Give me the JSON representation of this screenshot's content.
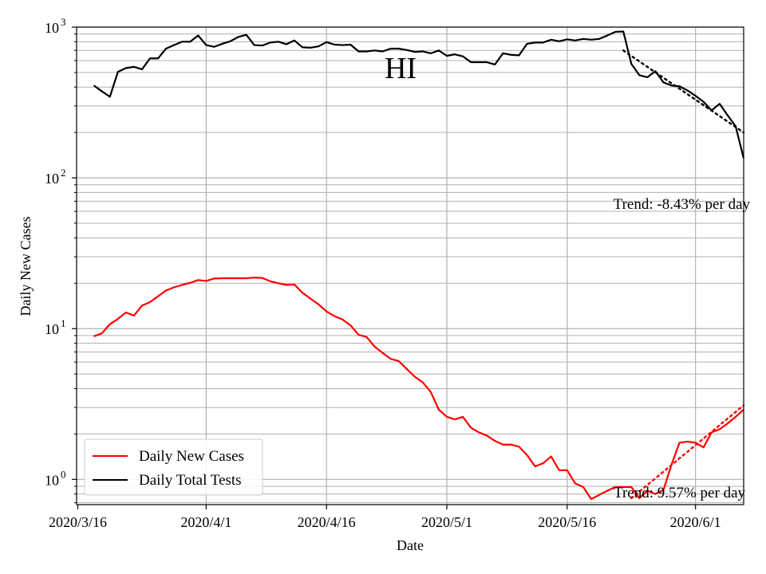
{
  "chart_data": {
    "type": "line",
    "title": "HI",
    "xlabel": "Date",
    "ylabel": "Daily New Cases",
    "yscale": "log",
    "ylim": [
      0.68,
      1000
    ],
    "xlim": [
      "2020-03-16",
      "2020-06-07"
    ],
    "grid": "major and minor",
    "legend_position": "lower-left",
    "x_ticks": [
      {
        "date": "2020-03-16",
        "label": "2020/3/16"
      },
      {
        "date": "2020-04-01",
        "label": "2020/4/1"
      },
      {
        "date": "2020-04-16",
        "label": "2020/4/16"
      },
      {
        "date": "2020-05-01",
        "label": "2020/5/1"
      },
      {
        "date": "2020-05-16",
        "label": "2020/5/16"
      },
      {
        "date": "2020-06-01",
        "label": "2020/6/1"
      }
    ],
    "y_ticks": [
      {
        "value": 1,
        "base": "10",
        "exp": "0"
      },
      {
        "value": 10,
        "base": "10",
        "exp": "1"
      },
      {
        "value": 100,
        "base": "10",
        "exp": "2"
      },
      {
        "value": 1000,
        "base": "10",
        "exp": "3"
      }
    ],
    "series": [
      {
        "name": "Daily New Cases",
        "color": "#ff0000",
        "points": [
          [
            "2020-03-18",
            8.9
          ],
          [
            "2020-03-19",
            9.3
          ],
          [
            "2020-03-20",
            10.7
          ],
          [
            "2020-03-21",
            11.6
          ],
          [
            "2020-03-22",
            12.8
          ],
          [
            "2020-03-23",
            12.2
          ],
          [
            "2020-03-24",
            14.2
          ],
          [
            "2020-03-25",
            15.0
          ],
          [
            "2020-03-26",
            16.4
          ],
          [
            "2020-03-27",
            17.9
          ],
          [
            "2020-03-28",
            18.8
          ],
          [
            "2020-03-29",
            19.5
          ],
          [
            "2020-03-30",
            20.1
          ],
          [
            "2020-03-31",
            21.0
          ],
          [
            "2020-04-01",
            20.7
          ],
          [
            "2020-04-02",
            21.5
          ],
          [
            "2020-04-03",
            21.6
          ],
          [
            "2020-04-04",
            21.6
          ],
          [
            "2020-04-05",
            21.6
          ],
          [
            "2020-04-06",
            21.6
          ],
          [
            "2020-04-07",
            21.8
          ],
          [
            "2020-04-08",
            21.7
          ],
          [
            "2020-04-09",
            20.6
          ],
          [
            "2020-04-10",
            20.0
          ],
          [
            "2020-04-11",
            19.5
          ],
          [
            "2020-04-12",
            19.6
          ],
          [
            "2020-04-13",
            17.3
          ],
          [
            "2020-04-14",
            15.8
          ],
          [
            "2020-04-15",
            14.5
          ],
          [
            "2020-04-16",
            13.0
          ],
          [
            "2020-04-17",
            12.1
          ],
          [
            "2020-04-18",
            11.5
          ],
          [
            "2020-04-19",
            10.5
          ],
          [
            "2020-04-20",
            9.1
          ],
          [
            "2020-04-21",
            8.8
          ],
          [
            "2020-04-22",
            7.6
          ],
          [
            "2020-04-23",
            6.9
          ],
          [
            "2020-04-24",
            6.3
          ],
          [
            "2020-04-25",
            6.1
          ],
          [
            "2020-04-26",
            5.4
          ],
          [
            "2020-04-27",
            4.8
          ],
          [
            "2020-04-28",
            4.4
          ],
          [
            "2020-04-29",
            3.8
          ],
          [
            "2020-04-30",
            2.9
          ],
          [
            "2020-05-01",
            2.6
          ],
          [
            "2020-05-02",
            2.5
          ],
          [
            "2020-05-03",
            2.6
          ],
          [
            "2020-05-04",
            2.2
          ],
          [
            "2020-05-05",
            2.05
          ],
          [
            "2020-05-06",
            1.95
          ],
          [
            "2020-05-07",
            1.8
          ],
          [
            "2020-05-08",
            1.7
          ],
          [
            "2020-05-09",
            1.7
          ],
          [
            "2020-05-10",
            1.65
          ],
          [
            "2020-05-11",
            1.45
          ],
          [
            "2020-05-12",
            1.22
          ],
          [
            "2020-05-13",
            1.28
          ],
          [
            "2020-05-14",
            1.42
          ],
          [
            "2020-05-15",
            1.15
          ],
          [
            "2020-05-16",
            1.15
          ],
          [
            "2020-05-17",
            0.94
          ],
          [
            "2020-05-18",
            0.89
          ],
          [
            "2020-05-19",
            0.74
          ],
          [
            "2020-05-20",
            0.79
          ],
          [
            "2020-05-21",
            0.84
          ],
          [
            "2020-05-22",
            0.89
          ],
          [
            "2020-05-23",
            0.89
          ],
          [
            "2020-05-24",
            0.89
          ],
          [
            "2020-05-25",
            0.75
          ],
          [
            "2020-05-26",
            0.84
          ],
          [
            "2020-05-27",
            0.8
          ],
          [
            "2020-05-28",
            0.85
          ],
          [
            "2020-05-29",
            1.25
          ],
          [
            "2020-05-30",
            1.75
          ],
          [
            "2020-05-31",
            1.78
          ],
          [
            "2020-06-01",
            1.75
          ],
          [
            "2020-06-02",
            1.63
          ],
          [
            "2020-06-03",
            2.05
          ],
          [
            "2020-06-04",
            2.15
          ],
          [
            "2020-06-05",
            2.35
          ],
          [
            "2020-06-06",
            2.6
          ],
          [
            "2020-06-07",
            2.9
          ]
        ]
      },
      {
        "name": "Daily Total Tests",
        "color": "#000000",
        "points": [
          [
            "2020-03-18",
            410
          ],
          [
            "2020-03-19",
            375
          ],
          [
            "2020-03-20",
            345
          ],
          [
            "2020-03-21",
            505
          ],
          [
            "2020-03-22",
            535
          ],
          [
            "2020-03-23",
            545
          ],
          [
            "2020-03-24",
            525
          ],
          [
            "2020-03-25",
            620
          ],
          [
            "2020-03-26",
            620
          ],
          [
            "2020-03-27",
            720
          ],
          [
            "2020-03-28",
            760
          ],
          [
            "2020-03-29",
            800
          ],
          [
            "2020-03-30",
            800
          ],
          [
            "2020-03-31",
            880
          ],
          [
            "2020-04-01",
            760
          ],
          [
            "2020-04-02",
            740
          ],
          [
            "2020-04-03",
            775
          ],
          [
            "2020-04-04",
            805
          ],
          [
            "2020-04-05",
            860
          ],
          [
            "2020-04-06",
            890
          ],
          [
            "2020-04-07",
            760
          ],
          [
            "2020-04-08",
            755
          ],
          [
            "2020-04-09",
            790
          ],
          [
            "2020-04-10",
            800
          ],
          [
            "2020-04-11",
            770
          ],
          [
            "2020-04-12",
            815
          ],
          [
            "2020-04-13",
            735
          ],
          [
            "2020-04-14",
            730
          ],
          [
            "2020-04-15",
            745
          ],
          [
            "2020-04-16",
            795
          ],
          [
            "2020-04-17",
            765
          ],
          [
            "2020-04-18",
            760
          ],
          [
            "2020-04-19",
            765
          ],
          [
            "2020-04-20",
            690
          ],
          [
            "2020-04-21",
            690
          ],
          [
            "2020-04-22",
            700
          ],
          [
            "2020-04-23",
            690
          ],
          [
            "2020-04-24",
            720
          ],
          [
            "2020-04-25",
            720
          ],
          [
            "2020-04-26",
            705
          ],
          [
            "2020-04-27",
            685
          ],
          [
            "2020-04-28",
            690
          ],
          [
            "2020-04-29",
            670
          ],
          [
            "2020-04-30",
            700
          ],
          [
            "2020-05-01",
            645
          ],
          [
            "2020-05-02",
            660
          ],
          [
            "2020-05-03",
            640
          ],
          [
            "2020-05-04",
            585
          ],
          [
            "2020-05-05",
            585
          ],
          [
            "2020-05-06",
            585
          ],
          [
            "2020-05-07",
            565
          ],
          [
            "2020-05-08",
            670
          ],
          [
            "2020-05-09",
            655
          ],
          [
            "2020-05-10",
            650
          ],
          [
            "2020-05-11",
            775
          ],
          [
            "2020-05-12",
            790
          ],
          [
            "2020-05-13",
            790
          ],
          [
            "2020-05-14",
            825
          ],
          [
            "2020-05-15",
            805
          ],
          [
            "2020-05-16",
            830
          ],
          [
            "2020-05-17",
            815
          ],
          [
            "2020-05-18",
            835
          ],
          [
            "2020-05-19",
            825
          ],
          [
            "2020-05-20",
            835
          ],
          [
            "2020-05-21",
            880
          ],
          [
            "2020-05-22",
            930
          ],
          [
            "2020-05-23",
            935
          ],
          [
            "2020-05-24",
            570
          ],
          [
            "2020-05-25",
            480
          ],
          [
            "2020-05-26",
            465
          ],
          [
            "2020-05-27",
            510
          ],
          [
            "2020-05-28",
            430
          ],
          [
            "2020-05-29",
            410
          ],
          [
            "2020-05-30",
            405
          ],
          [
            "2020-05-31",
            380
          ],
          [
            "2020-06-01",
            350
          ],
          [
            "2020-06-02",
            320
          ],
          [
            "2020-06-03",
            280
          ],
          [
            "2020-06-04",
            310
          ],
          [
            "2020-06-05",
            260
          ],
          [
            "2020-06-06",
            220
          ],
          [
            "2020-06-07",
            135
          ]
        ]
      }
    ],
    "trend_lines": [
      {
        "color": "#ff0000",
        "points": [
          [
            "2020-05-24",
            0.75
          ],
          [
            "2020-06-07",
            3.1
          ]
        ]
      },
      {
        "color": "#000000",
        "points": [
          [
            "2020-05-23",
            700
          ],
          [
            "2020-06-07",
            200
          ]
        ]
      }
    ],
    "annotations": [
      {
        "id": "tests-trend",
        "text": "Trend: -8.43% per day"
      },
      {
        "id": "cases-trend",
        "text": "Trend: 9.57% per day"
      }
    ]
  }
}
